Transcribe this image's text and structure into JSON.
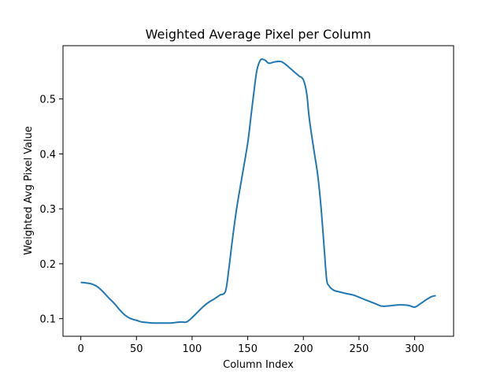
{
  "chart_data": {
    "type": "line",
    "title": "Weighted Average Pixel per Column",
    "xlabel": "Column Index",
    "ylabel": "Weighted Avg Pixel Value",
    "xlim": [
      -16,
      335
    ],
    "ylim": [
      0.068,
      0.597
    ],
    "xticks": [
      0,
      50,
      100,
      150,
      200,
      250,
      300
    ],
    "yticks": [
      0.1,
      0.2,
      0.3,
      0.4,
      0.5
    ],
    "xtick_labels": [
      "0",
      "50",
      "100",
      "150",
      "200",
      "250",
      "300"
    ],
    "ytick_labels": [
      "0.1",
      "0.2",
      "0.3",
      "0.4",
      "0.5"
    ],
    "grid": false,
    "legend": "none",
    "series": [
      {
        "color": "#1f77b4",
        "x": [
          0,
          5,
          10,
          15,
          20,
          25,
          30,
          35,
          40,
          45,
          50,
          55,
          60,
          65,
          70,
          75,
          80,
          85,
          90,
          95,
          100,
          105,
          110,
          115,
          120,
          125,
          130,
          133,
          136,
          140,
          145,
          150,
          153,
          156,
          158,
          160,
          162,
          164,
          166,
          168,
          170,
          173,
          176,
          180,
          184,
          188,
          192,
          196,
          200,
          203,
          205,
          207,
          210,
          213,
          216,
          219,
          221,
          223,
          225,
          228,
          232,
          238,
          245,
          250,
          255,
          260,
          265,
          270,
          275,
          280,
          285,
          290,
          295,
          300,
          305,
          310,
          315,
          319
        ],
        "y": [
          0.166,
          0.165,
          0.163,
          0.158,
          0.149,
          0.138,
          0.128,
          0.116,
          0.106,
          0.1,
          0.097,
          0.094,
          0.093,
          0.092,
          0.092,
          0.092,
          0.092,
          0.093,
          0.094,
          0.094,
          0.102,
          0.112,
          0.122,
          0.13,
          0.136,
          0.143,
          0.15,
          0.19,
          0.24,
          0.3,
          0.36,
          0.42,
          0.47,
          0.52,
          0.55,
          0.565,
          0.572,
          0.572,
          0.57,
          0.566,
          0.565,
          0.567,
          0.568,
          0.568,
          0.563,
          0.556,
          0.549,
          0.542,
          0.535,
          0.51,
          0.47,
          0.44,
          0.4,
          0.36,
          0.3,
          0.22,
          0.17,
          0.16,
          0.155,
          0.151,
          0.149,
          0.146,
          0.143,
          0.139,
          0.135,
          0.131,
          0.127,
          0.123,
          0.123,
          0.124,
          0.125,
          0.125,
          0.124,
          0.121,
          0.127,
          0.134,
          0.14,
          0.142
        ]
      }
    ]
  }
}
